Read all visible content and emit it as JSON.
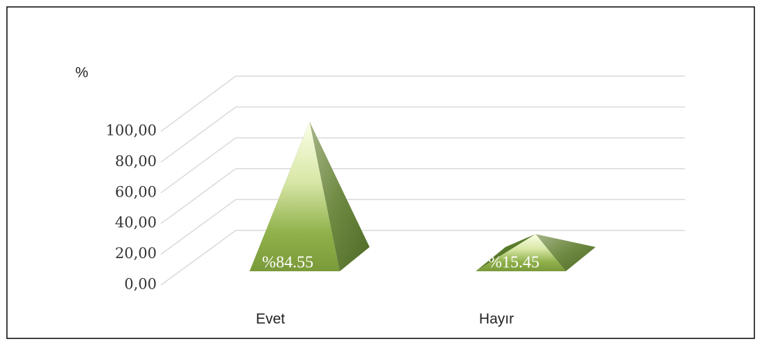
{
  "chart_data": {
    "type": "pyramid",
    "y_label": "%",
    "categories": [
      "Evet",
      "Hayır"
    ],
    "values": [
      84.55,
      15.45
    ],
    "value_labels": [
      "%84.55",
      "%15.45"
    ],
    "color": "#7a9a3a",
    "ylim": [
      0,
      100
    ],
    "yticks": [
      {
        "value": 0,
        "label": "0,00"
      },
      {
        "value": 20,
        "label": "20,00"
      },
      {
        "value": 40,
        "label": "40,00"
      },
      {
        "value": 60,
        "label": "60,00"
      },
      {
        "value": 80,
        "label": "80,00"
      },
      {
        "value": 100,
        "label": "100,00"
      }
    ],
    "grid": true
  }
}
